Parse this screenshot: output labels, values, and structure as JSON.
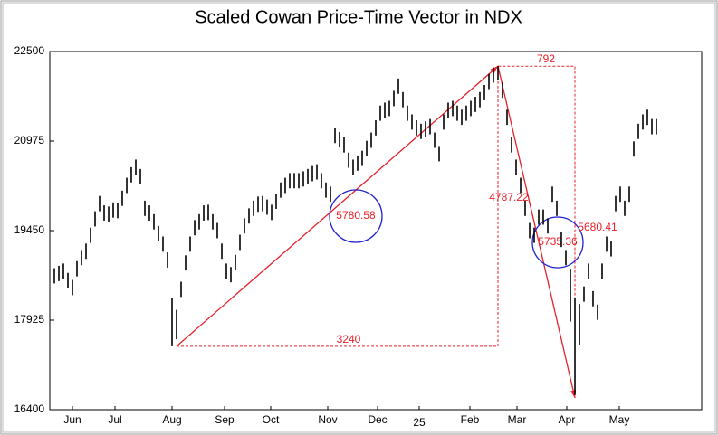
{
  "chart_data": {
    "type": "ohlc",
    "title": "Scaled Cowan Price-Time Vector in NDX",
    "xlim": [
      0,
      144
    ],
    "xticks": [
      {
        "value": 5,
        "label": "Jun"
      },
      {
        "value": 14.4,
        "label": "Jul"
      },
      {
        "value": 27,
        "label": "Aug"
      },
      {
        "value": 38.6,
        "label": "Sep"
      },
      {
        "value": 48.8,
        "label": "Oct"
      },
      {
        "value": 61.4,
        "label": "Nov"
      },
      {
        "value": 72.4,
        "label": "Dec"
      },
      {
        "value": 81.6,
        "label": "25"
      },
      {
        "value": 92.8,
        "label": "Feb"
      },
      {
        "value": 103.2,
        "label": "Mar"
      },
      {
        "value": 114.2,
        "label": "Apr"
      },
      {
        "value": 125.8,
        "label": "May"
      }
    ],
    "ylim": [
      16400,
      22500
    ],
    "yticks": [
      16400,
      17925,
      19450,
      20975,
      22500
    ],
    "series": [
      {
        "color": "#000000",
        "x": [
          1,
          2,
          3,
          4,
          5,
          6,
          7,
          8,
          9,
          10,
          11,
          12,
          13,
          14,
          15,
          16,
          17,
          18,
          19,
          20,
          21,
          22,
          23,
          24,
          25,
          26,
          27,
          28,
          29,
          30,
          31,
          32,
          33,
          34,
          35,
          36,
          37,
          38,
          39,
          40,
          41,
          42,
          43,
          44,
          45,
          46,
          47,
          48,
          49,
          50,
          51,
          52,
          53,
          54,
          55,
          56,
          57,
          58,
          59,
          60,
          61,
          62,
          63,
          64,
          65,
          66,
          67,
          68,
          69,
          70,
          71,
          72,
          73,
          74,
          75,
          76,
          77,
          78,
          79,
          80,
          81,
          82,
          83,
          84,
          85,
          86,
          87,
          88,
          89,
          90,
          91,
          92,
          93,
          94,
          95,
          96,
          97,
          98,
          99,
          100,
          101,
          102,
          103,
          104,
          105,
          106,
          107,
          108,
          109,
          110,
          111,
          112,
          113,
          114,
          115,
          116,
          117,
          118,
          119,
          120,
          121,
          122,
          123,
          124,
          125,
          126,
          127,
          128,
          129,
          130,
          131,
          132,
          133,
          134
        ],
        "high": [
          18810,
          18850,
          18890,
          18730,
          18610,
          18930,
          19120,
          19230,
          19500,
          19780,
          20040,
          19880,
          19860,
          19930,
          19920,
          20130,
          20350,
          20530,
          20660,
          20500,
          19960,
          19880,
          19730,
          19530,
          19350,
          19080,
          18300,
          18100,
          18580,
          19030,
          19350,
          19630,
          19730,
          19880,
          19890,
          19730,
          19580,
          19230,
          18890,
          18830,
          19040,
          19380,
          19660,
          19830,
          19960,
          20030,
          20040,
          19980,
          19890,
          20080,
          20270,
          20350,
          20430,
          20430,
          20430,
          20460,
          20500,
          20550,
          20580,
          20430,
          20270,
          20200,
          21200,
          21130,
          21040,
          20780,
          20660,
          20730,
          20810,
          20980,
          21120,
          21330,
          21580,
          21630,
          21660,
          21830,
          22040,
          21810,
          21580,
          21430,
          21330,
          21270,
          21310,
          21350,
          21120,
          20890,
          21430,
          21630,
          21660,
          21580,
          21510,
          21580,
          21660,
          21730,
          21810,
          21930,
          22120,
          22230,
          22250,
          21970,
          21510,
          21040,
          20660,
          20350,
          19960,
          19580,
          19500,
          19810,
          19810,
          19660,
          20200,
          19960,
          19430,
          19120,
          18800,
          18300,
          18200,
          18500,
          18890,
          18420,
          18190,
          18890,
          19350,
          19270,
          20040,
          20200,
          19960,
          20200,
          20970,
          21270,
          21430,
          21510,
          21350,
          21350
        ],
        "low": [
          18550,
          18590,
          18630,
          18470,
          18350,
          18670,
          18860,
          18970,
          19240,
          19520,
          19780,
          19620,
          19600,
          19670,
          19660,
          19870,
          20090,
          20270,
          20400,
          20240,
          19700,
          19620,
          19470,
          19270,
          19090,
          18820,
          17480,
          17600,
          18320,
          18770,
          19090,
          19370,
          19470,
          19620,
          19630,
          19470,
          19320,
          18970,
          18630,
          18570,
          18780,
          19120,
          19400,
          19570,
          19700,
          19770,
          19780,
          19720,
          19630,
          19820,
          20010,
          20090,
          20170,
          20170,
          20170,
          20200,
          20240,
          20290,
          20320,
          20170,
          20010,
          19940,
          20940,
          20870,
          20780,
          20520,
          20400,
          20470,
          20550,
          20720,
          20860,
          21070,
          21320,
          21370,
          21400,
          21570,
          21780,
          21550,
          21320,
          21170,
          21070,
          21010,
          21050,
          21090,
          20860,
          20630,
          21170,
          21370,
          21400,
          21320,
          21250,
          21320,
          21400,
          21470,
          21550,
          21670,
          21860,
          21970,
          22020,
          21710,
          21250,
          20780,
          20400,
          20090,
          19700,
          19320,
          19240,
          19550,
          19550,
          19400,
          19940,
          19700,
          19170,
          18860,
          17900,
          16650,
          17500,
          18240,
          18630,
          18160,
          17930,
          18630,
          19090,
          19010,
          19780,
          19940,
          19700,
          19940,
          20710,
          21010,
          21170,
          21250,
          21090,
          21090
        ]
      }
    ],
    "vector": {
      "color": "#e8202a",
      "points": [
        {
          "x": 28,
          "y": 17480
        },
        {
          "x": 99,
          "y": 22250
        },
        {
          "x": 116,
          "y": 16600
        }
      ]
    },
    "annotations": [
      "3240",
      "792",
      "4787.22",
      "5680.41",
      "5780.58",
      "5735.36"
    ]
  }
}
